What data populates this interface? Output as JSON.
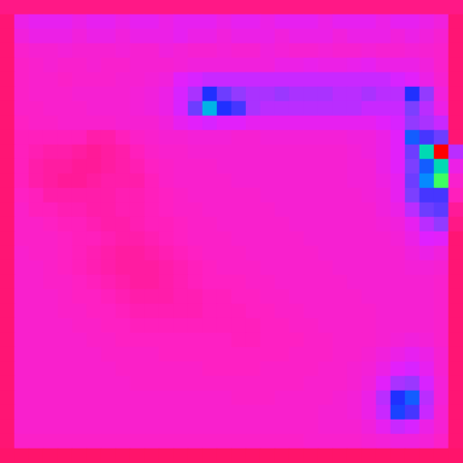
{
  "chart_data": {
    "type": "heatmap",
    "tick_labels": false,
    "zlim": [
      0,
      100
    ],
    "cells": [
      [
        6,
        6,
        6,
        6,
        6,
        6,
        6,
        6,
        6,
        6,
        6,
        6,
        6,
        6,
        6,
        6,
        6,
        6,
        6,
        6,
        6,
        6,
        6,
        6,
        6,
        6,
        6,
        6,
        6,
        6,
        6,
        6
      ],
      [
        4,
        20,
        22,
        22,
        22,
        20,
        22,
        22,
        20,
        22,
        22,
        20,
        22,
        22,
        22,
        20,
        22,
        22,
        20,
        22,
        22,
        22,
        20,
        22,
        22,
        22,
        20,
        22,
        22,
        20,
        18,
        4
      ],
      [
        4,
        18,
        20,
        20,
        20,
        18,
        20,
        20,
        18,
        20,
        20,
        20,
        22,
        20,
        20,
        18,
        20,
        20,
        20,
        18,
        20,
        20,
        20,
        18,
        20,
        20,
        20,
        18,
        20,
        18,
        16,
        4
      ],
      [
        4,
        15,
        16,
        16,
        17,
        16,
        16,
        16,
        17,
        16,
        16,
        18,
        17,
        16,
        16,
        17,
        16,
        16,
        18,
        17,
        16,
        16,
        17,
        16,
        16,
        17,
        16,
        16,
        17,
        16,
        15,
        4
      ],
      [
        4,
        14,
        15,
        16,
        15,
        15,
        16,
        15,
        15,
        16,
        16,
        16,
        17,
        18,
        18,
        18,
        18,
        18,
        18,
        20,
        20,
        21,
        20,
        20,
        21,
        22,
        20,
        20,
        20,
        18,
        15,
        4
      ],
      [
        4,
        14,
        15,
        15,
        14,
        15,
        15,
        15,
        16,
        16,
        17,
        18,
        24,
        26,
        28,
        28,
        28,
        28,
        28,
        28,
        28,
        28,
        28,
        28,
        28,
        28,
        28,
        26,
        24,
        20,
        16,
        4
      ],
      [
        4,
        14,
        15,
        15,
        15,
        16,
        16,
        16,
        16,
        17,
        18,
        20,
        26,
        32,
        50,
        40,
        35,
        32,
        32,
        34,
        32,
        32,
        32,
        30,
        30,
        32,
        30,
        30,
        50,
        35,
        18,
        4
      ],
      [
        4,
        14,
        14,
        15,
        15,
        15,
        16,
        16,
        16,
        17,
        18,
        20,
        26,
        40,
        65,
        50,
        45,
        32,
        30,
        30,
        30,
        30,
        30,
        30,
        30,
        28,
        28,
        28,
        38,
        30,
        20,
        4
      ],
      [
        4,
        13,
        14,
        14,
        15,
        15,
        15,
        15,
        16,
        16,
        16,
        18,
        22,
        24,
        26,
        24,
        24,
        22,
        22,
        22,
        22,
        22,
        22,
        22,
        22,
        22,
        24,
        26,
        35,
        32,
        28,
        4
      ],
      [
        4,
        12,
        12,
        12,
        12,
        12,
        10,
        10,
        12,
        14,
        15,
        16,
        16,
        17,
        17,
        17,
        16,
        16,
        17,
        17,
        17,
        17,
        17,
        17,
        18,
        18,
        20,
        24,
        55,
        45,
        40,
        4
      ],
      [
        4,
        12,
        11,
        10,
        10,
        9,
        8,
        9,
        10,
        12,
        14,
        15,
        15,
        16,
        16,
        16,
        16,
        16,
        16,
        16,
        16,
        16,
        16,
        16,
        17,
        18,
        20,
        24,
        40,
        70,
        100,
        30
      ],
      [
        4,
        12,
        10,
        9,
        9,
        8,
        8,
        9,
        10,
        11,
        13,
        14,
        15,
        15,
        15,
        16,
        16,
        16,
        16,
        16,
        16,
        16,
        16,
        16,
        17,
        17,
        20,
        24,
        38,
        55,
        70,
        20
      ],
      [
        4,
        12,
        10,
        9,
        8,
        8,
        9,
        10,
        10,
        10,
        12,
        14,
        15,
        15,
        15,
        15,
        16,
        16,
        16,
        16,
        16,
        16,
        16,
        16,
        17,
        17,
        19,
        22,
        40,
        60,
        78,
        15
      ],
      [
        4,
        13,
        12,
        10,
        10,
        10,
        10,
        10,
        11,
        11,
        12,
        13,
        14,
        15,
        15,
        15,
        15,
        15,
        16,
        16,
        16,
        16,
        16,
        16,
        16,
        17,
        18,
        22,
        38,
        45,
        45,
        12
      ],
      [
        4,
        14,
        12,
        12,
        11,
        11,
        10,
        10,
        11,
        11,
        12,
        13,
        14,
        14,
        15,
        15,
        15,
        15,
        15,
        16,
        16,
        16,
        16,
        16,
        16,
        16,
        18,
        20,
        30,
        40,
        42,
        8
      ],
      [
        4,
        14,
        14,
        13,
        12,
        12,
        11,
        10,
        10,
        11,
        12,
        12,
        13,
        14,
        14,
        15,
        15,
        15,
        15,
        15,
        16,
        16,
        16,
        16,
        16,
        16,
        17,
        18,
        22,
        30,
        35,
        6
      ],
      [
        4,
        14,
        14,
        14,
        13,
        12,
        12,
        11,
        10,
        10,
        11,
        12,
        13,
        14,
        14,
        14,
        15,
        15,
        15,
        15,
        15,
        16,
        16,
        16,
        16,
        16,
        16,
        17,
        20,
        25,
        24,
        4
      ],
      [
        4,
        15,
        14,
        14,
        13,
        12,
        11,
        10,
        9,
        9,
        10,
        11,
        12,
        13,
        14,
        14,
        14,
        15,
        15,
        15,
        15,
        15,
        16,
        16,
        16,
        16,
        16,
        16,
        18,
        20,
        18,
        4
      ],
      [
        4,
        15,
        15,
        14,
        13,
        12,
        11,
        10,
        9,
        9,
        9,
        10,
        11,
        12,
        13,
        14,
        14,
        14,
        15,
        15,
        15,
        15,
        15,
        16,
        16,
        16,
        16,
        16,
        17,
        17,
        16,
        4
      ],
      [
        4,
        15,
        15,
        14,
        14,
        13,
        12,
        11,
        10,
        9,
        9,
        10,
        11,
        12,
        13,
        13,
        13,
        14,
        14,
        15,
        15,
        15,
        15,
        15,
        16,
        16,
        16,
        16,
        16,
        16,
        15,
        4
      ],
      [
        4,
        15,
        15,
        15,
        14,
        13,
        13,
        12,
        11,
        10,
        10,
        10,
        11,
        11,
        12,
        12,
        13,
        13,
        14,
        14,
        15,
        15,
        15,
        15,
        15,
        16,
        16,
        16,
        16,
        16,
        15,
        4
      ],
      [
        4,
        15,
        15,
        15,
        14,
        14,
        13,
        13,
        12,
        11,
        11,
        11,
        11,
        11,
        12,
        12,
        12,
        13,
        13,
        14,
        14,
        15,
        15,
        15,
        15,
        15,
        16,
        16,
        16,
        16,
        15,
        4
      ],
      [
        4,
        15,
        15,
        15,
        15,
        14,
        14,
        13,
        13,
        12,
        12,
        12,
        12,
        12,
        12,
        12,
        12,
        12,
        13,
        13,
        14,
        14,
        15,
        15,
        15,
        15,
        16,
        16,
        16,
        16,
        15,
        4
      ],
      [
        4,
        15,
        15,
        15,
        15,
        15,
        14,
        14,
        13,
        13,
        13,
        13,
        13,
        13,
        13,
        13,
        12,
        12,
        13,
        13,
        13,
        14,
        14,
        15,
        15,
        15,
        16,
        17,
        18,
        17,
        15,
        4
      ],
      [
        4,
        15,
        15,
        15,
        15,
        15,
        15,
        14,
        14,
        14,
        14,
        13,
        13,
        13,
        13,
        13,
        13,
        13,
        13,
        13,
        14,
        14,
        14,
        15,
        15,
        16,
        18,
        20,
        22,
        20,
        16,
        4
      ],
      [
        4,
        15,
        15,
        15,
        15,
        15,
        15,
        15,
        14,
        14,
        14,
        14,
        14,
        14,
        13,
        13,
        13,
        13,
        14,
        14,
        14,
        14,
        15,
        15,
        16,
        17,
        20,
        24,
        26,
        22,
        16,
        4
      ],
      [
        4,
        15,
        15,
        15,
        15,
        15,
        15,
        15,
        15,
        14,
        14,
        14,
        14,
        14,
        14,
        14,
        14,
        14,
        14,
        14,
        14,
        15,
        15,
        15,
        16,
        18,
        24,
        32,
        34,
        26,
        17,
        4
      ],
      [
        4,
        15,
        15,
        15,
        15,
        15,
        15,
        15,
        15,
        15,
        15,
        15,
        15,
        15,
        15,
        15,
        14,
        14,
        14,
        15,
        15,
        15,
        15,
        16,
        17,
        20,
        30,
        50,
        55,
        30,
        17,
        4
      ],
      [
        4,
        15,
        15,
        15,
        15,
        15,
        15,
        15,
        15,
        15,
        15,
        15,
        15,
        15,
        15,
        15,
        15,
        15,
        15,
        15,
        15,
        15,
        16,
        16,
        17,
        20,
        28,
        52,
        45,
        28,
        16,
        4
      ],
      [
        4,
        15,
        15,
        15,
        15,
        15,
        15,
        15,
        15,
        15,
        15,
        15,
        15,
        15,
        15,
        15,
        15,
        15,
        15,
        15,
        15,
        15,
        16,
        16,
        16,
        18,
        22,
        28,
        26,
        20,
        16,
        4
      ],
      [
        4,
        14,
        14,
        14,
        14,
        14,
        14,
        14,
        14,
        14,
        14,
        14,
        14,
        14,
        14,
        14,
        14,
        14,
        14,
        14,
        14,
        15,
        15,
        15,
        15,
        16,
        17,
        18,
        18,
        17,
        14,
        4
      ],
      [
        3,
        3,
        3,
        3,
        3,
        3,
        3,
        3,
        3,
        3,
        3,
        3,
        3,
        3,
        3,
        3,
        3,
        3,
        3,
        3,
        3,
        3,
        3,
        3,
        3,
        3,
        3,
        3,
        3,
        3,
        3,
        3
      ]
    ]
  }
}
